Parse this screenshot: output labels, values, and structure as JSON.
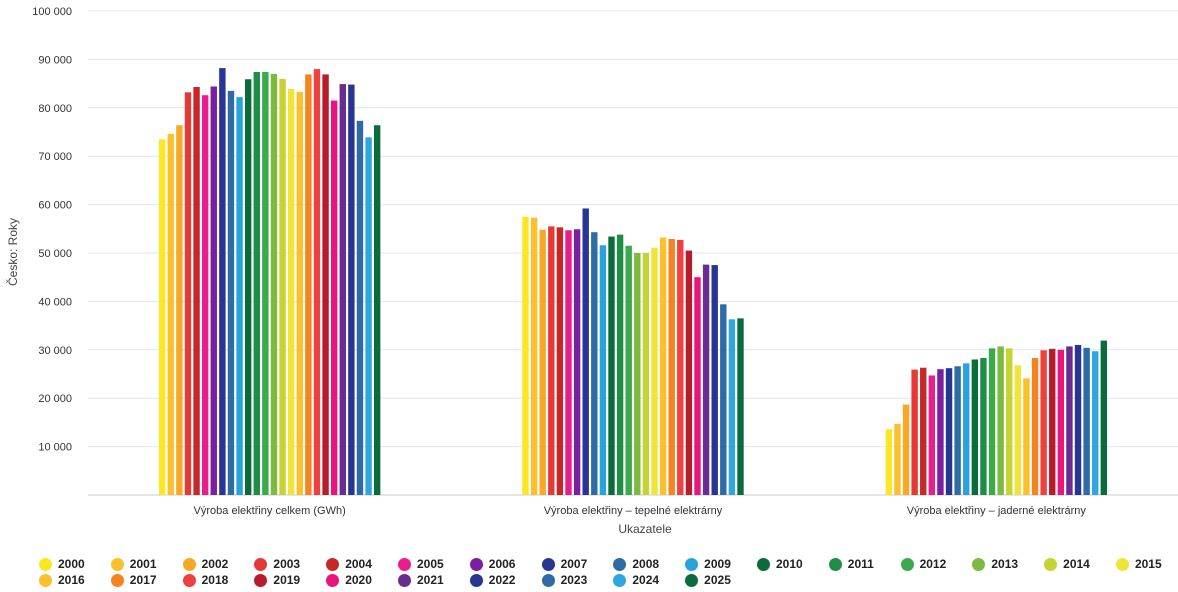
{
  "chart_data": {
    "type": "bar",
    "xlabel": "Ukazatele",
    "ylabel": "Česko: Roky",
    "ylim": [
      0,
      100000
    ],
    "yticks": [
      "10 000",
      "20 000",
      "30 000",
      "40 000",
      "50 000",
      "60 000",
      "70 000",
      "80 000",
      "90 000",
      "100 000"
    ],
    "grid": true,
    "legend_position": "bottom",
    "categories": [
      "Výroba elektřiny celkem (GWh)",
      "Výroba elektřiny – tepelné elektrárny",
      "Výroba elektřiny – jaderné elektrárny"
    ],
    "series": [
      {
        "name": "2000",
        "color": "#fde725",
        "values": [
          73500,
          57500,
          13600
        ]
      },
      {
        "name": "2001",
        "color": "#fbc02d",
        "values": [
          74600,
          57300,
          14700
        ]
      },
      {
        "name": "2002",
        "color": "#f9a825",
        "values": [
          76400,
          54800,
          18700
        ]
      },
      {
        "name": "2003",
        "color": "#e53935",
        "values": [
          83200,
          55500,
          25900
        ]
      },
      {
        "name": "2004",
        "color": "#c62828",
        "values": [
          84300,
          55300,
          26300
        ]
      },
      {
        "name": "2005",
        "color": "#e91e8c",
        "values": [
          82600,
          54700,
          24700
        ]
      },
      {
        "name": "2006",
        "color": "#7b1fa2",
        "values": [
          84400,
          54900,
          26000
        ]
      },
      {
        "name": "2007",
        "color": "#283593",
        "values": [
          88200,
          59200,
          26200
        ]
      },
      {
        "name": "2008",
        "color": "#2e6da4",
        "values": [
          83500,
          54300,
          26600
        ]
      },
      {
        "name": "2009",
        "color": "#29a3dc",
        "values": [
          82200,
          51600,
          27200
        ]
      },
      {
        "name": "2010",
        "color": "#0b6b3a",
        "values": [
          85900,
          53400,
          28000
        ]
      },
      {
        "name": "2011",
        "color": "#1e8e46",
        "values": [
          87400,
          53800,
          28300
        ]
      },
      {
        "name": "2012",
        "color": "#3aaa4a",
        "values": [
          87400,
          51500,
          30300
        ]
      },
      {
        "name": "2013",
        "color": "#7cbb42",
        "values": [
          87000,
          50000,
          30700
        ]
      },
      {
        "name": "2014",
        "color": "#c5d430",
        "values": [
          86000,
          50000,
          30300
        ]
      },
      {
        "name": "2015",
        "color": "#f0e43a",
        "values": [
          83900,
          51100,
          26800
        ]
      },
      {
        "name": "2016",
        "color": "#fbc02d",
        "values": [
          83300,
          53200,
          24100
        ]
      },
      {
        "name": "2017",
        "color": "#f5831f",
        "values": [
          86900,
          52900,
          28300
        ]
      },
      {
        "name": "2018",
        "color": "#ef4040",
        "values": [
          88000,
          52700,
          29900
        ]
      },
      {
        "name": "2019",
        "color": "#b71c2c",
        "values": [
          86900,
          50500,
          30200
        ]
      },
      {
        "name": "2020",
        "color": "#e8157d",
        "values": [
          81500,
          45000,
          30000
        ]
      },
      {
        "name": "2021",
        "color": "#6a2c91",
        "values": [
          84900,
          47600,
          30700
        ]
      },
      {
        "name": "2022",
        "color": "#283593",
        "values": [
          84800,
          47500,
          31000
        ]
      },
      {
        "name": "2023",
        "color": "#2f6aa7",
        "values": [
          77300,
          39400,
          30400
        ]
      },
      {
        "name": "2024",
        "color": "#2ea6e0",
        "values": [
          73900,
          36300,
          29700
        ]
      },
      {
        "name": "2025",
        "color": "#0a6b3c",
        "values": [
          76400,
          36500,
          31900
        ]
      }
    ]
  }
}
